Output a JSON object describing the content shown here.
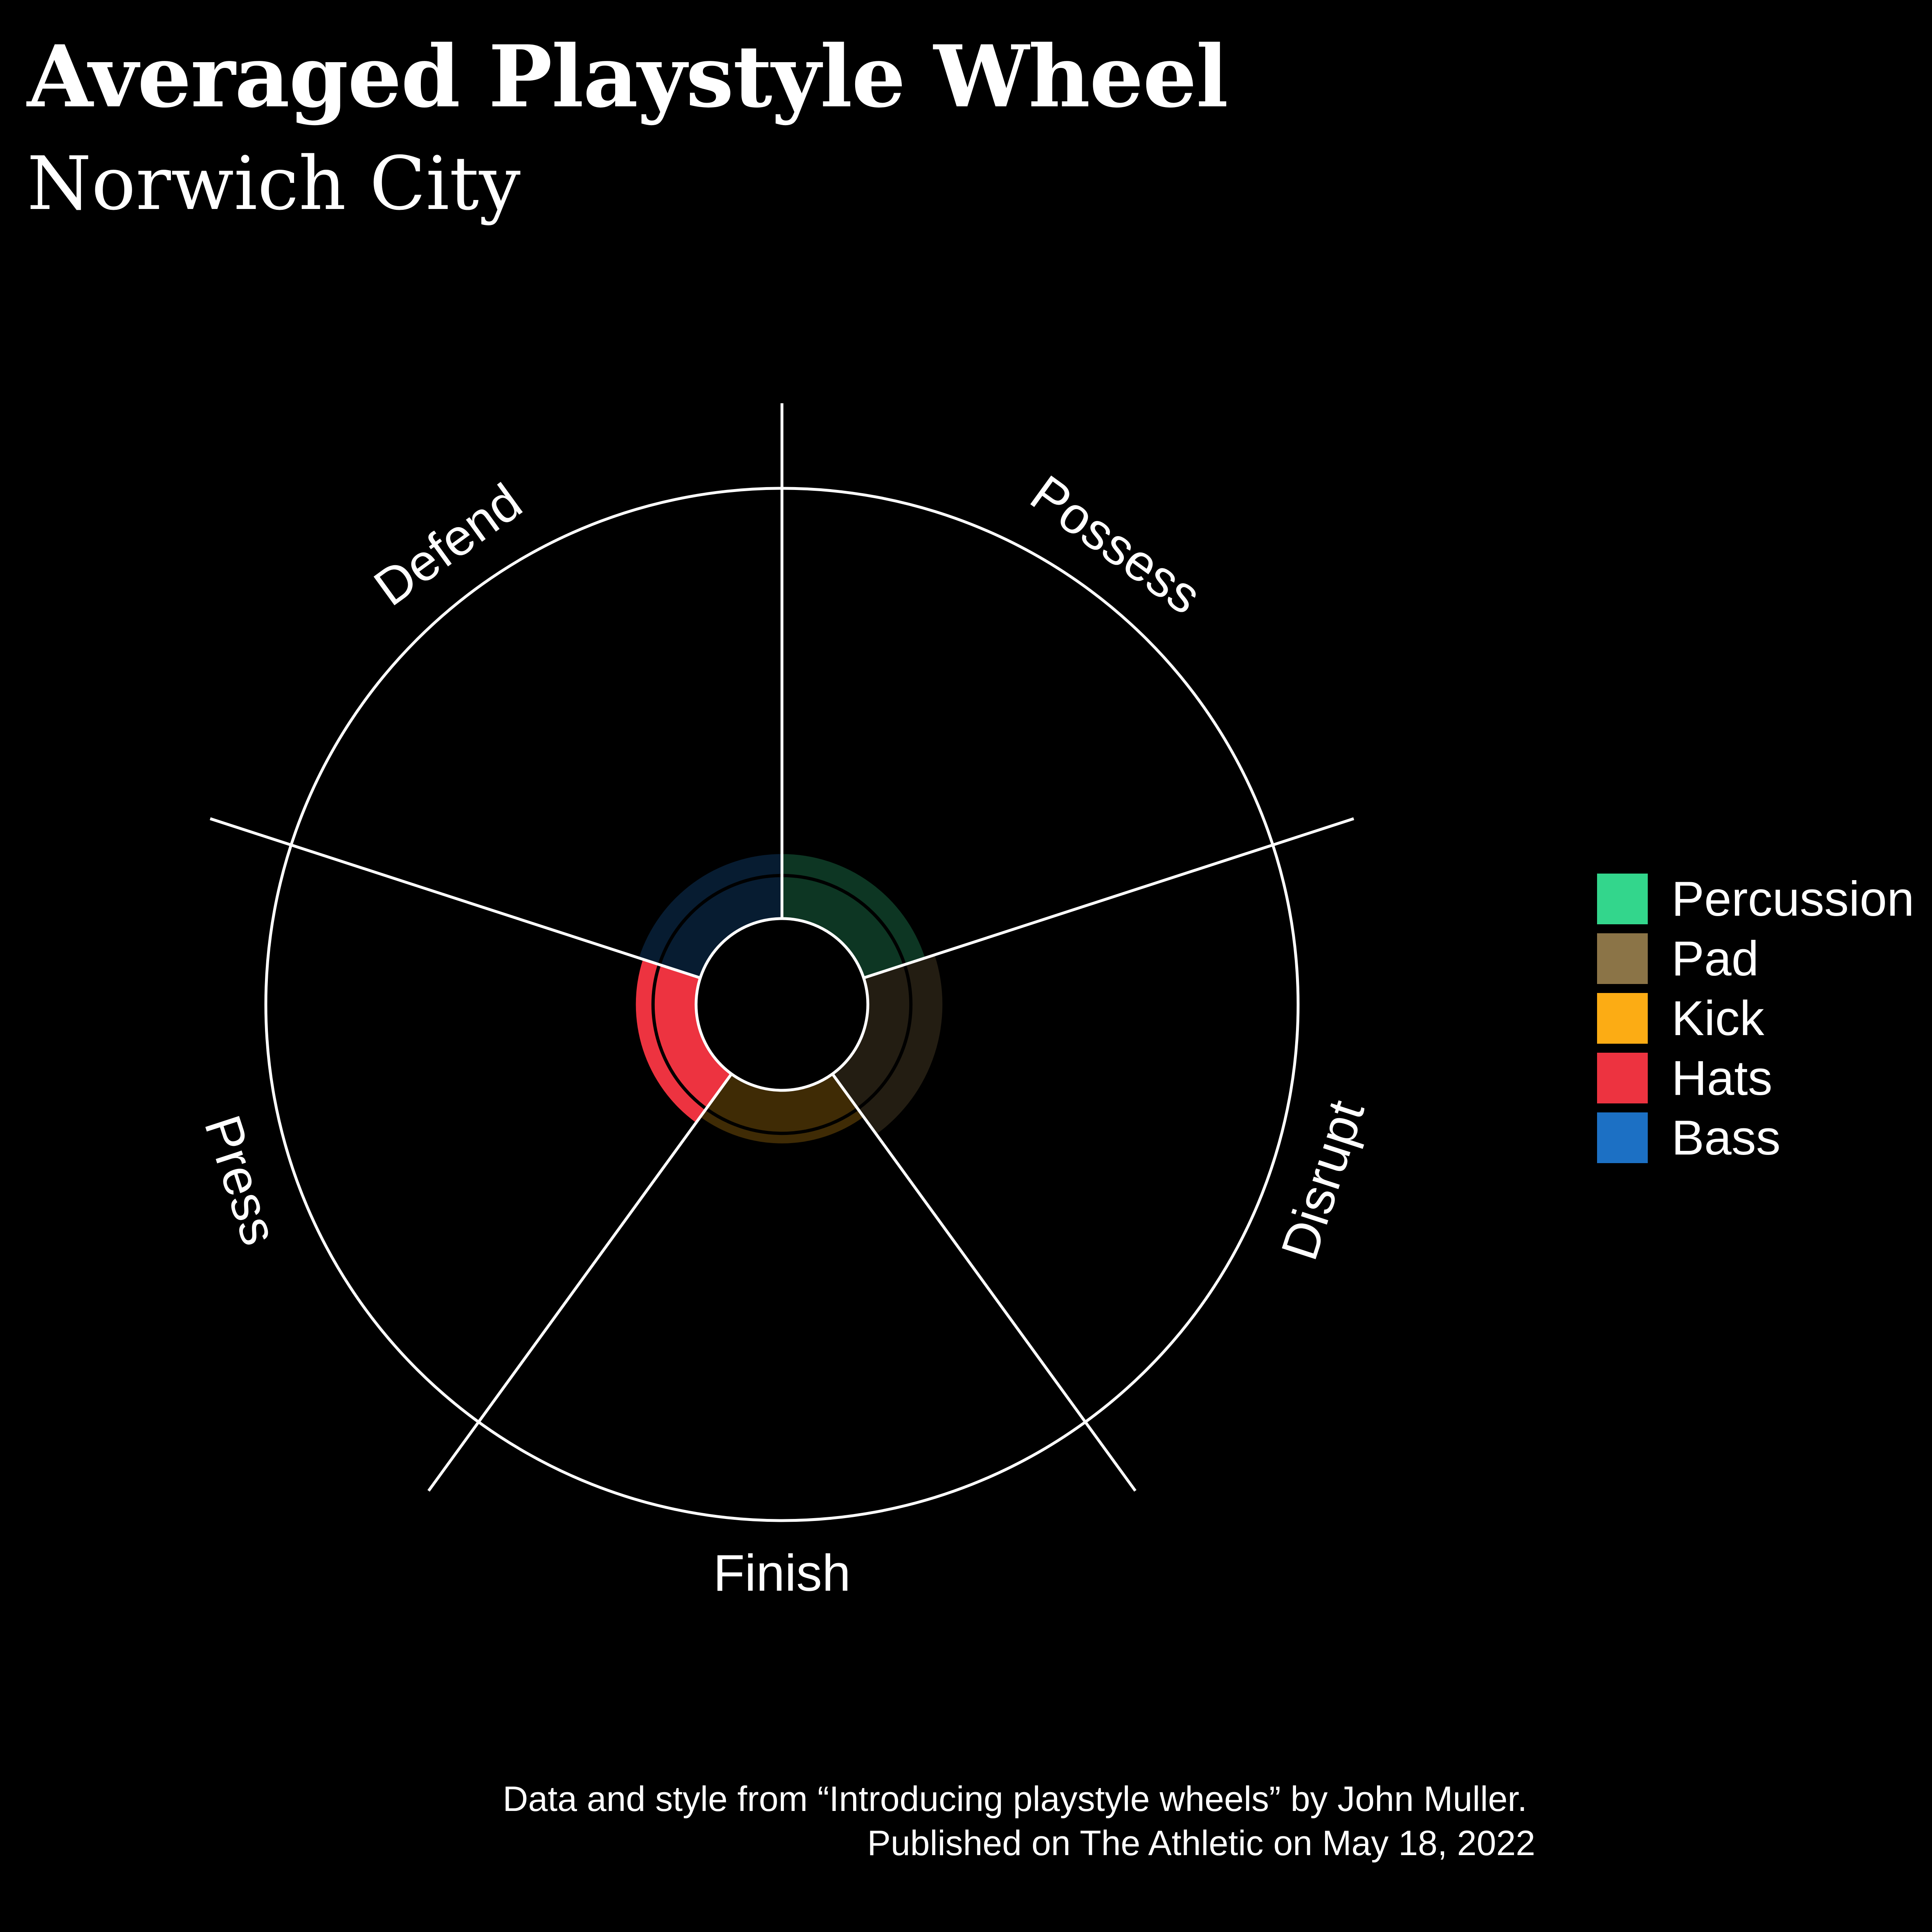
{
  "title": "Averaged Playstyle Wheel",
  "subtitle": "Norwich City",
  "caption": {
    "line1": "Data and style from “Introducing playstyle wheels” by John Muller.",
    "line2": "Published on The Athletic on May 18, 2022"
  },
  "legend": {
    "items": [
      {
        "label": "Percussion",
        "color": "#33d68c"
      },
      {
        "label": "Pad",
        "color": "#8b7447"
      },
      {
        "label": "Kick",
        "color": "#fcac14"
      },
      {
        "label": "Hats",
        "color": "#ed3340"
      },
      {
        "label": "Bass",
        "color": "#1c70c4"
      }
    ]
  },
  "chart_data": {
    "type": "polar-bar",
    "title": "Averaged Playstyle Wheel",
    "subtitle": "Norwich City",
    "categories": [
      "Possess",
      "Disrupt",
      "Finish",
      "Press",
      "Defend"
    ],
    "values": [
      0.45,
      0.52,
      0.37,
      0.42,
      0.45
    ],
    "colors": [
      "#33d68c",
      "#8b7447",
      "#fcac14",
      "#ed3340",
      "#1c70c4"
    ],
    "highlighted": [
      false,
      false,
      false,
      true,
      false
    ],
    "ylim": [
      0,
      3
    ],
    "reference_circle": 0.3,
    "legend": [
      "Percussion",
      "Pad",
      "Kick",
      "Hats",
      "Bass"
    ],
    "legend_position": "right"
  }
}
